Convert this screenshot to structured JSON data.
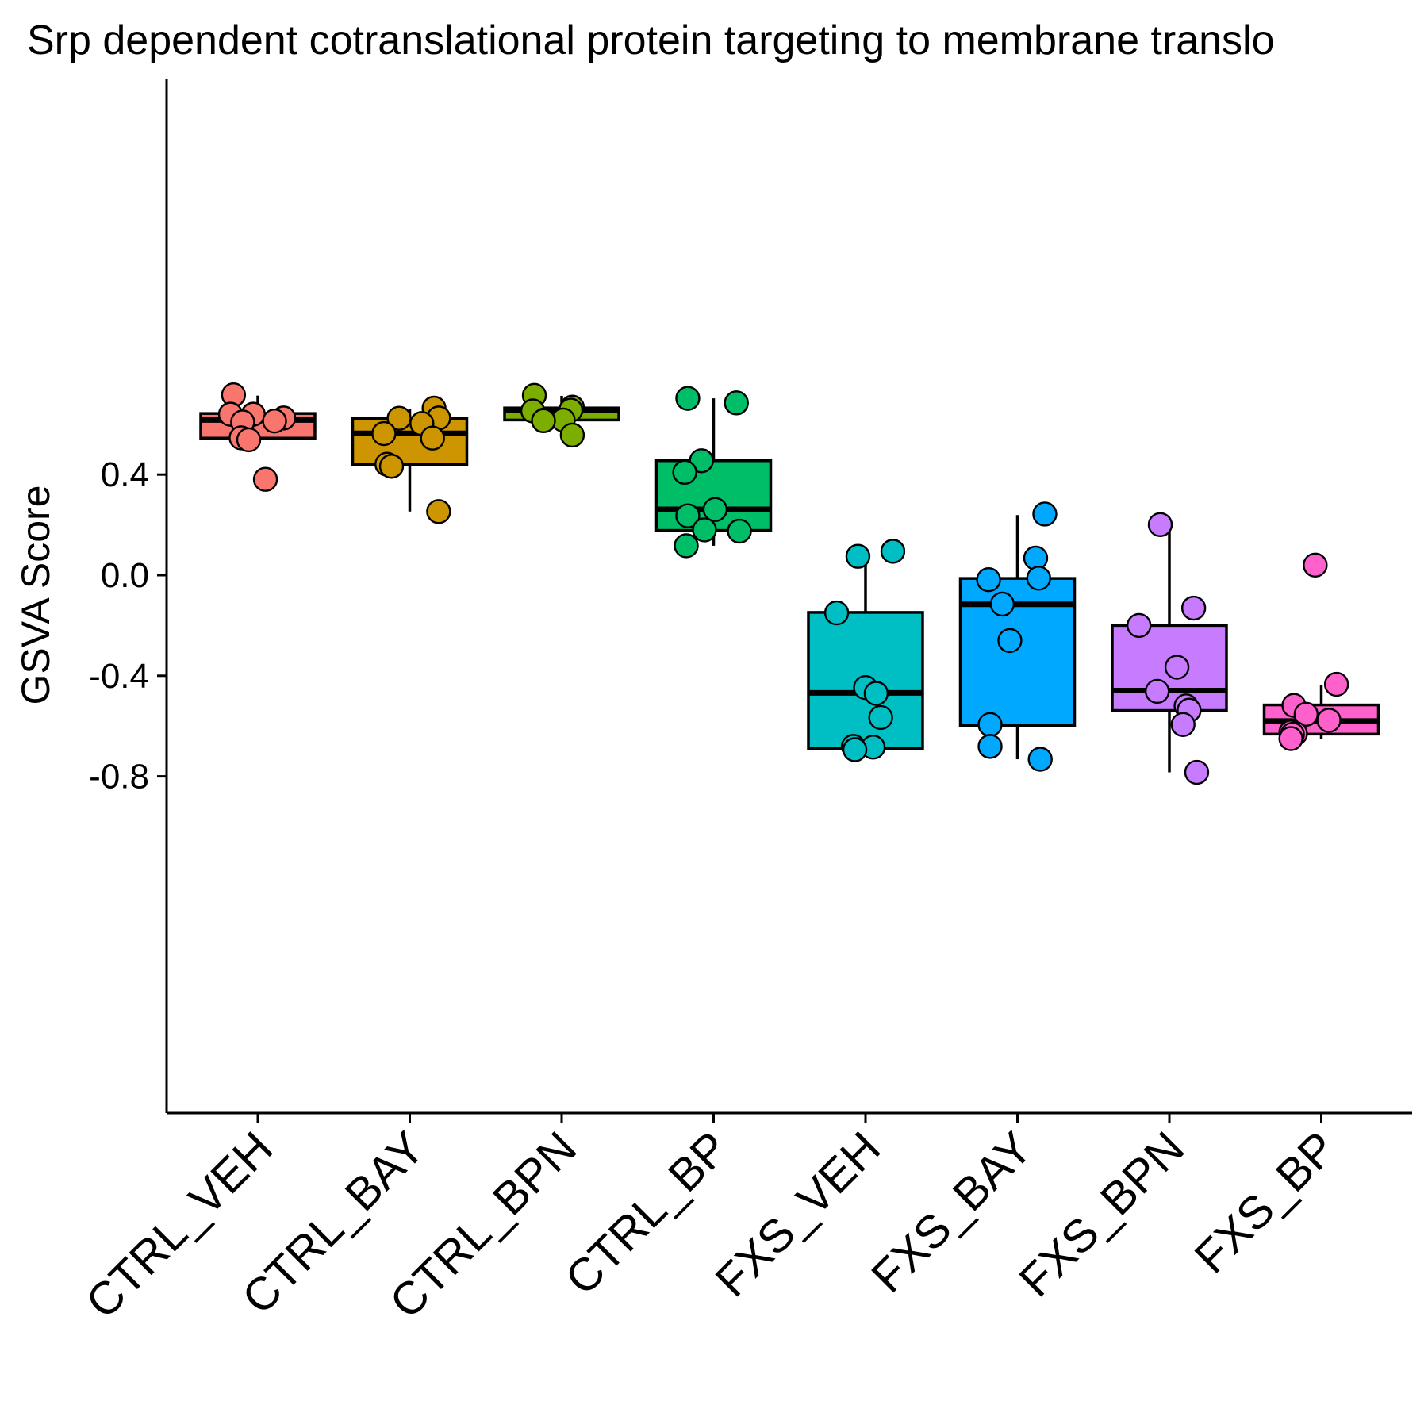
{
  "chart_data": {
    "type": "box",
    "title": "Srp dependent cotranslational protein targeting to membrane translo",
    "xlabel": "",
    "ylabel": "GSVA Score",
    "ylim": [
      -0.86,
      0.79
    ],
    "yticks": [
      -0.8,
      -0.4,
      0.0,
      0.4
    ],
    "ytick_labels": [
      "-0.8",
      "-0.4",
      "0.0",
      "0.4"
    ],
    "grid": false,
    "legend": "none",
    "categories": [
      "CTRL_VEH",
      "CTRL_BAY",
      "CTRL_BPN",
      "CTRL_BP",
      "FXS_VEH",
      "FXS_BAY",
      "FXS_BPN",
      "FXS_BP"
    ],
    "series": [
      {
        "color": "#F8766D",
        "box": {
          "whisker_low": 0.545,
          "q1": 0.545,
          "median": 0.617,
          "q3": 0.643,
          "whisker_high": 0.714
        },
        "points": [
          {
            "x": -0.16,
            "y": 0.717
          },
          {
            "x": -0.18,
            "y": 0.64
          },
          {
            "x": -0.03,
            "y": 0.64
          },
          {
            "x": 0.17,
            "y": 0.625
          },
          {
            "x": 0.11,
            "y": 0.613
          },
          {
            "x": -0.1,
            "y": 0.609
          },
          {
            "x": -0.11,
            "y": 0.546
          },
          {
            "x": -0.06,
            "y": 0.538
          },
          {
            "x": 0.05,
            "y": 0.381
          }
        ]
      },
      {
        "color": "#CD9600",
        "box": {
          "whisker_low": 0.253,
          "q1": 0.44,
          "median": 0.564,
          "q3": 0.623,
          "whisker_high": 0.661
        },
        "points": [
          {
            "x": 0.16,
            "y": 0.664
          },
          {
            "x": -0.07,
            "y": 0.624
          },
          {
            "x": 0.19,
            "y": 0.625
          },
          {
            "x": 0.08,
            "y": 0.603
          },
          {
            "x": -0.17,
            "y": 0.563
          },
          {
            "x": 0.15,
            "y": 0.545
          },
          {
            "x": -0.15,
            "y": 0.441
          },
          {
            "x": -0.12,
            "y": 0.433
          },
          {
            "x": 0.19,
            "y": 0.253
          }
        ]
      },
      {
        "color": "#7CAE00",
        "box": {
          "whisker_low": 0.56,
          "q1": 0.617,
          "median": 0.657,
          "q3": 0.665,
          "whisker_high": 0.713
        },
        "points": [
          {
            "x": -0.18,
            "y": 0.715
          },
          {
            "x": 0.07,
            "y": 0.668
          },
          {
            "x": 0.06,
            "y": 0.656
          },
          {
            "x": -0.19,
            "y": 0.653
          },
          {
            "x": -0.11,
            "y": 0.618
          },
          {
            "x": 0.01,
            "y": 0.617
          },
          {
            "x": -0.12,
            "y": 0.614
          },
          {
            "x": 0.07,
            "y": 0.557
          }
        ]
      },
      {
        "color": "#00BE67",
        "box": {
          "whisker_low": 0.117,
          "q1": 0.178,
          "median": 0.262,
          "q3": 0.455,
          "whisker_high": 0.703
        },
        "points": [
          {
            "x": -0.17,
            "y": 0.703
          },
          {
            "x": 0.15,
            "y": 0.685
          },
          {
            "x": -0.08,
            "y": 0.455
          },
          {
            "x": -0.19,
            "y": 0.409
          },
          {
            "x": 0.01,
            "y": 0.261
          },
          {
            "x": -0.17,
            "y": 0.236
          },
          {
            "x": -0.06,
            "y": 0.18
          },
          {
            "x": 0.17,
            "y": 0.175
          },
          {
            "x": -0.18,
            "y": 0.117
          }
        ]
      },
      {
        "color": "#00BFC4",
        "box": {
          "whisker_low": -0.69,
          "q1": -0.69,
          "median": -0.468,
          "q3": -0.148,
          "whisker_high": 0.068
        },
        "points": [
          {
            "x": 0.18,
            "y": 0.095
          },
          {
            "x": -0.05,
            "y": 0.075
          },
          {
            "x": -0.19,
            "y": -0.15
          },
          {
            "x": 0.0,
            "y": -0.447
          },
          {
            "x": 0.07,
            "y": -0.47
          },
          {
            "x": 0.1,
            "y": -0.566
          },
          {
            "x": -0.08,
            "y": -0.681
          },
          {
            "x": 0.05,
            "y": -0.684
          },
          {
            "x": -0.07,
            "y": -0.694
          }
        ]
      },
      {
        "color": "#00A9FF",
        "box": {
          "whisker_low": -0.732,
          "q1": -0.597,
          "median": -0.116,
          "q3": -0.013,
          "whisker_high": 0.239
        },
        "points": [
          {
            "x": 0.18,
            "y": 0.243
          },
          {
            "x": 0.12,
            "y": 0.068
          },
          {
            "x": -0.19,
            "y": -0.018
          },
          {
            "x": 0.14,
            "y": -0.012
          },
          {
            "x": -0.1,
            "y": -0.115
          },
          {
            "x": -0.05,
            "y": -0.26
          },
          {
            "x": -0.18,
            "y": -0.594
          },
          {
            "x": -0.18,
            "y": -0.681
          },
          {
            "x": 0.15,
            "y": -0.732
          }
        ]
      },
      {
        "color": "#C77CFF",
        "box": {
          "whisker_low": -0.784,
          "q1": -0.538,
          "median": -0.459,
          "q3": -0.2,
          "whisker_high": 0.198
        },
        "points": [
          {
            "x": -0.06,
            "y": 0.201
          },
          {
            "x": 0.16,
            "y": -0.131
          },
          {
            "x": -0.2,
            "y": -0.2
          },
          {
            "x": 0.05,
            "y": -0.366
          },
          {
            "x": -0.08,
            "y": -0.462
          },
          {
            "x": 0.11,
            "y": -0.52
          },
          {
            "x": 0.13,
            "y": -0.537
          },
          {
            "x": 0.09,
            "y": -0.594
          },
          {
            "x": 0.18,
            "y": -0.784
          }
        ]
      },
      {
        "color": "#FF61CC",
        "box": {
          "whisker_low": -0.652,
          "q1": -0.632,
          "median": -0.58,
          "q3": -0.516,
          "whisker_high": -0.438
        },
        "points": [
          {
            "x": -0.04,
            "y": 0.04
          },
          {
            "x": 0.1,
            "y": -0.434
          },
          {
            "x": -0.18,
            "y": -0.518
          },
          {
            "x": -0.1,
            "y": -0.553
          },
          {
            "x": 0.05,
            "y": -0.577
          },
          {
            "x": -0.2,
            "y": -0.624
          },
          {
            "x": -0.17,
            "y": -0.63
          },
          {
            "x": -0.19,
            "y": -0.633
          },
          {
            "x": -0.2,
            "y": -0.65
          }
        ]
      }
    ]
  }
}
